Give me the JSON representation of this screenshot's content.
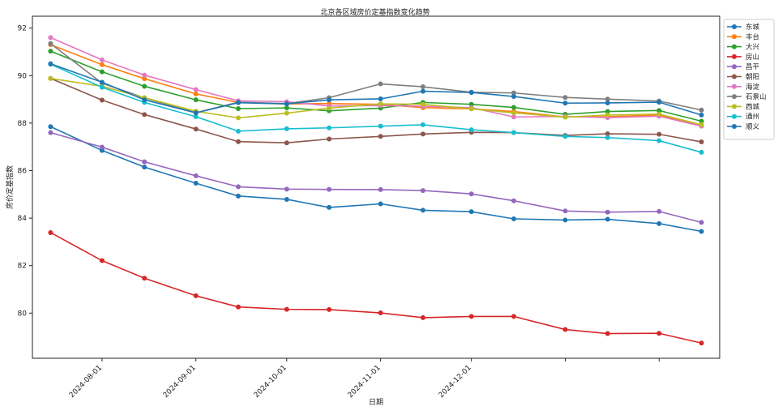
{
  "chart_data": {
    "type": "line",
    "title": "北京各区域房价定基指数变化趋势",
    "xlabel": "日期",
    "ylabel": "房价定基指数",
    "ylim": [
      78.1,
      92.5
    ],
    "yticks": [
      80,
      82,
      84,
      86,
      88,
      90,
      92
    ],
    "x": [
      "2024-07-15",
      "2024-08-01",
      "2024-08-15",
      "2024-09-01",
      "2024-09-15",
      "2024-10-01",
      "2024-10-15",
      "2024-11-01",
      "2024-11-15",
      "2024-12-01",
      "2024-12-15",
      "2025-01-01",
      "2025-01-15",
      "2025-02-01",
      "2025-02-15"
    ],
    "xlim": [
      "2024-07-09",
      "2025-02-21"
    ],
    "xticks": [
      "2024-08-01",
      "2024-09-01",
      "2024-10-01",
      "2024-11-01",
      "2024-12-01",
      "2025-01-01",
      "2025-02-01"
    ],
    "xtick_labels": [
      "2024-08-01",
      "2024-09-01",
      "2024-10-01",
      "2024-11-01",
      "2024-12-01",
      "",
      ""
    ],
    "grid": false,
    "legend": "outside-right",
    "series": [
      {
        "name": "东城",
        "color": "#1f77b4",
        "values": [
          87.85,
          86.85,
          86.15,
          85.47,
          84.93,
          84.79,
          84.45,
          84.6,
          84.33,
          84.27,
          83.97,
          83.92,
          83.95,
          83.77,
          83.44
        ]
      },
      {
        "name": "丰台",
        "color": "#ff7f0e",
        "values": [
          91.3,
          90.46,
          89.87,
          89.23,
          88.87,
          88.81,
          88.82,
          88.79,
          88.65,
          88.6,
          88.49,
          88.26,
          88.27,
          88.34,
          87.88
        ]
      },
      {
        "name": "大兴",
        "color": "#2ca02c",
        "values": [
          91.03,
          90.16,
          89.55,
          88.98,
          88.61,
          88.64,
          88.52,
          88.63,
          88.87,
          88.79,
          88.66,
          88.37,
          88.49,
          88.53,
          88.08
        ]
      },
      {
        "name": "房山",
        "color": "#d62728",
        "values": [
          83.39,
          82.21,
          81.47,
          80.73,
          80.26,
          80.16,
          80.15,
          80.01,
          79.81,
          79.86,
          79.86,
          79.31,
          79.14,
          79.15,
          78.74
        ]
      },
      {
        "name": "昌平",
        "color": "#9467bd",
        "values": [
          87.6,
          86.99,
          86.37,
          85.78,
          85.32,
          85.22,
          85.21,
          85.2,
          85.16,
          85.02,
          84.73,
          84.3,
          84.25,
          84.28,
          83.82
        ]
      },
      {
        "name": "朝阳",
        "color": "#8c564b",
        "values": [
          89.88,
          88.97,
          88.36,
          87.75,
          87.22,
          87.17,
          87.33,
          87.44,
          87.54,
          87.61,
          87.6,
          87.48,
          87.55,
          87.53,
          87.21
        ]
      },
      {
        "name": "海淀",
        "color": "#e377c2",
        "values": [
          91.6,
          90.66,
          90.02,
          89.41,
          88.94,
          88.9,
          88.72,
          88.74,
          88.71,
          88.65,
          88.26,
          88.28,
          88.23,
          88.29,
          87.87
        ]
      },
      {
        "name": "石景山",
        "color": "#7f7f7f",
        "values": [
          91.35,
          89.68,
          89.06,
          88.44,
          88.88,
          88.82,
          89.07,
          89.65,
          89.53,
          89.3,
          89.27,
          89.08,
          89.01,
          88.93,
          88.55
        ]
      },
      {
        "name": "西城",
        "color": "#bcbd22",
        "values": [
          89.88,
          89.55,
          89.07,
          88.5,
          88.22,
          88.42,
          88.63,
          88.81,
          88.79,
          88.6,
          88.43,
          88.25,
          88.34,
          88.38,
          87.93
        ]
      },
      {
        "name": "通州",
        "color": "#17becf",
        "values": [
          90.48,
          89.51,
          88.87,
          88.27,
          87.66,
          87.76,
          87.8,
          87.87,
          87.93,
          87.72,
          87.6,
          87.44,
          87.39,
          87.26,
          86.77
        ]
      },
      {
        "name": "顺义",
        "color": "#1f77b4",
        "values": [
          90.5,
          89.72,
          88.98,
          88.43,
          88.86,
          88.81,
          88.98,
          89.02,
          89.34,
          89.29,
          89.12,
          88.84,
          88.85,
          88.88,
          88.34
        ]
      }
    ]
  }
}
